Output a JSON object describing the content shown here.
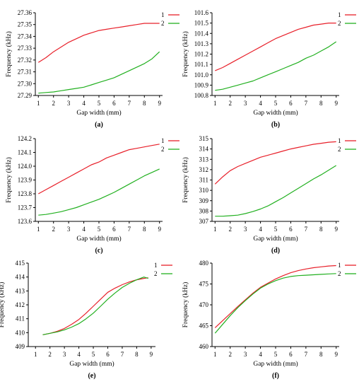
{
  "chart_data": [
    {
      "type": "line",
      "panel_label": "(a)",
      "xlabel": "Gap width (mm)",
      "ylabel": "Frequency (kHz)",
      "xlim": [
        0.8,
        9.2
      ],
      "ylim": [
        27.29,
        27.36
      ],
      "x_ticks": [
        "1",
        "2",
        "3",
        "4",
        "5",
        "6",
        "7",
        "8",
        "9"
      ],
      "y_ticks": [
        "27.29",
        "27.30",
        "27.31",
        "27.32",
        "27.33",
        "27.34",
        "27.35",
        "27.36"
      ],
      "series": [
        {
          "name": "1",
          "color": "#e8202a",
          "x": [
            1,
            1.5,
            2,
            2.5,
            3,
            3.5,
            4,
            4.5,
            5,
            5.5,
            6,
            6.5,
            7,
            7.5,
            8,
            8.5,
            9
          ],
          "y": [
            27.318,
            27.322,
            27.327,
            27.331,
            27.335,
            27.338,
            27.341,
            27.343,
            27.345,
            27.346,
            27.347,
            27.348,
            27.349,
            27.35,
            27.351,
            27.351,
            27.351
          ]
        },
        {
          "name": "2",
          "color": "#22b020",
          "x": [
            1,
            1.5,
            2,
            2.5,
            3,
            3.5,
            4,
            4.5,
            5,
            5.5,
            6,
            6.5,
            7,
            7.5,
            8,
            8.5,
            9
          ],
          "y": [
            27.292,
            27.2925,
            27.293,
            27.294,
            27.295,
            27.296,
            27.297,
            27.299,
            27.301,
            27.303,
            27.305,
            27.308,
            27.311,
            27.314,
            27.317,
            27.321,
            27.327
          ]
        }
      ]
    },
    {
      "type": "line",
      "panel_label": "(b)",
      "xlabel": "Gap width (mm)",
      "ylabel": "Frequency (kHz)",
      "xlim": [
        0.8,
        9.2
      ],
      "ylim": [
        100.8,
        101.6
      ],
      "x_ticks": [
        "1",
        "2",
        "3",
        "4",
        "5",
        "6",
        "7",
        "8",
        "9"
      ],
      "y_ticks": [
        "100.8",
        "100.9",
        "101.0",
        "101.1",
        "101.2",
        "101.3",
        "101.4",
        "101.5",
        "101.6"
      ],
      "series": [
        {
          "name": "1",
          "color": "#e8202a",
          "x": [
            1,
            1.5,
            2,
            2.5,
            3,
            3.5,
            4,
            4.5,
            5,
            5.5,
            6,
            6.5,
            7,
            7.5,
            8,
            8.5,
            9
          ],
          "y": [
            101.04,
            101.07,
            101.11,
            101.15,
            101.19,
            101.23,
            101.27,
            101.31,
            101.35,
            101.38,
            101.41,
            101.44,
            101.46,
            101.48,
            101.49,
            101.5,
            101.5
          ]
        },
        {
          "name": "2",
          "color": "#22b020",
          "x": [
            1,
            1.5,
            2,
            2.5,
            3,
            3.5,
            4,
            4.5,
            5,
            5.5,
            6,
            6.5,
            7,
            7.5,
            8,
            8.5,
            9
          ],
          "y": [
            100.85,
            100.86,
            100.88,
            100.9,
            100.92,
            100.94,
            100.97,
            101.0,
            101.03,
            101.06,
            101.09,
            101.12,
            101.16,
            101.19,
            101.23,
            101.27,
            101.32
          ]
        }
      ]
    },
    {
      "type": "line",
      "panel_label": "(c)",
      "xlabel": "Gap width (mm)",
      "ylabel": "Frequency (kHz)",
      "xlim": [
        0.8,
        9.2
      ],
      "ylim": [
        123.6,
        124.2
      ],
      "x_ticks": [
        "1",
        "2",
        "3",
        "4",
        "5",
        "6",
        "7",
        "8",
        "9"
      ],
      "y_ticks": [
        "123.6",
        "123.7",
        "123.8",
        "123.9",
        "124.0",
        "124.1",
        "124.2"
      ],
      "series": [
        {
          "name": "1",
          "color": "#e8202a",
          "x": [
            1,
            1.5,
            2,
            2.5,
            3,
            3.5,
            4,
            4.5,
            5,
            5.5,
            6,
            6.5,
            7,
            7.5,
            8,
            8.5,
            9
          ],
          "y": [
            123.8,
            123.83,
            123.86,
            123.89,
            123.92,
            123.95,
            123.98,
            124.01,
            124.03,
            124.06,
            124.08,
            124.1,
            124.12,
            124.13,
            124.14,
            124.15,
            124.16
          ]
        },
        {
          "name": "2",
          "color": "#22b020",
          "x": [
            1,
            1.5,
            2,
            2.5,
            3,
            3.5,
            4,
            4.5,
            5,
            5.5,
            6,
            6.5,
            7,
            7.5,
            8,
            8.5,
            9
          ],
          "y": [
            123.645,
            123.65,
            123.66,
            123.67,
            123.685,
            123.7,
            123.72,
            123.74,
            123.76,
            123.785,
            123.81,
            123.84,
            123.87,
            123.9,
            123.93,
            123.955,
            123.98
          ]
        }
      ]
    },
    {
      "type": "line",
      "panel_label": "(d)",
      "xlabel": "Gap width (mm)",
      "ylabel": "Frequency (kHz)",
      "xlim": [
        0.8,
        9.2
      ],
      "ylim": [
        307,
        315
      ],
      "x_ticks": [
        "1",
        "2",
        "3",
        "4",
        "5",
        "6",
        "7",
        "8",
        "9"
      ],
      "y_ticks": [
        "307",
        "308",
        "309",
        "310",
        "311",
        "312",
        "313",
        "314",
        "315"
      ],
      "series": [
        {
          "name": "1",
          "color": "#e8202a",
          "x": [
            1,
            1.5,
            2,
            2.5,
            3,
            3.5,
            4,
            4.5,
            5,
            5.5,
            6,
            6.5,
            7,
            7.5,
            8,
            8.5,
            9
          ],
          "y": [
            310.6,
            311.3,
            311.9,
            312.3,
            312.6,
            312.9,
            313.2,
            313.4,
            313.6,
            313.8,
            314.0,
            314.15,
            314.3,
            314.45,
            314.55,
            314.65,
            314.7
          ]
        },
        {
          "name": "2",
          "color": "#22b020",
          "x": [
            1,
            1.5,
            2,
            2.5,
            3,
            3.5,
            4,
            4.5,
            5,
            5.5,
            6,
            6.5,
            7,
            7.5,
            8,
            8.5,
            9
          ],
          "y": [
            307.5,
            307.5,
            307.55,
            307.6,
            307.75,
            307.95,
            308.2,
            308.5,
            308.9,
            309.3,
            309.75,
            310.2,
            310.65,
            311.1,
            311.5,
            311.95,
            312.4
          ]
        }
      ]
    },
    {
      "type": "line",
      "panel_label": "(e)",
      "xlabel": "Gap width (mm)",
      "ylabel": "Frequency (kHz)",
      "xlim": [
        0.5,
        9.3
      ],
      "ylim": [
        409,
        415
      ],
      "x_ticks": [
        "1",
        "2",
        "3",
        "4",
        "5",
        "6",
        "7",
        "8",
        "9"
      ],
      "y_ticks": [
        "409",
        "410",
        "411",
        "412",
        "413",
        "414",
        "415"
      ],
      "series": [
        {
          "name": "1",
          "color": "#e8202a",
          "x": [
            1.5,
            2,
            2.5,
            3,
            3.5,
            4,
            4.5,
            5,
            5.5,
            6,
            6.5,
            7,
            7.5,
            8,
            8.5,
            8.8
          ],
          "y": [
            409.85,
            409.95,
            410.1,
            410.3,
            410.6,
            410.95,
            411.4,
            411.9,
            412.4,
            412.9,
            413.2,
            413.45,
            413.65,
            413.8,
            413.9,
            413.95
          ]
        },
        {
          "name": "2",
          "color": "#22b020",
          "x": [
            1.5,
            2,
            2.5,
            3,
            3.5,
            4,
            4.5,
            5,
            5.5,
            6,
            6.5,
            7,
            7.5,
            8,
            8.5,
            8.8
          ],
          "y": [
            409.85,
            409.95,
            410.05,
            410.2,
            410.4,
            410.65,
            411.0,
            411.4,
            411.9,
            412.4,
            412.85,
            413.25,
            413.55,
            413.8,
            414.0,
            413.9
          ]
        }
      ]
    },
    {
      "type": "line",
      "panel_label": "(f)",
      "xlabel": "Gap width (mm)",
      "ylabel": "Frequency (kHz)",
      "xlim": [
        0.8,
        9.2
      ],
      "ylim": [
        460,
        480
      ],
      "x_ticks": [
        "1",
        "2",
        "3",
        "4",
        "5",
        "6",
        "7",
        "8",
        "9"
      ],
      "y_ticks": [
        "460",
        "465",
        "470",
        "475",
        "480"
      ],
      "series": [
        {
          "name": "1",
          "color": "#e8202a",
          "x": [
            1,
            1.5,
            2,
            2.5,
            3,
            3.5,
            4,
            4.5,
            5,
            5.5,
            6,
            6.5,
            7,
            7.5,
            8,
            8.5,
            9
          ],
          "y": [
            464.5,
            466.2,
            467.9,
            469.6,
            471.2,
            472.8,
            474.2,
            475.2,
            476.2,
            477.0,
            477.7,
            478.2,
            478.6,
            478.9,
            479.1,
            479.3,
            479.4
          ]
        },
        {
          "name": "2",
          "color": "#22b020",
          "x": [
            1,
            1.5,
            2,
            2.5,
            3,
            3.5,
            4,
            4.5,
            5,
            5.5,
            6,
            6.5,
            7,
            7.5,
            8,
            8.5,
            9
          ],
          "y": [
            463.2,
            465.3,
            467.4,
            469.3,
            471.0,
            472.6,
            474.0,
            475.0,
            475.8,
            476.4,
            476.8,
            477.0,
            477.1,
            477.2,
            477.3,
            477.4,
            477.5
          ]
        }
      ]
    }
  ]
}
